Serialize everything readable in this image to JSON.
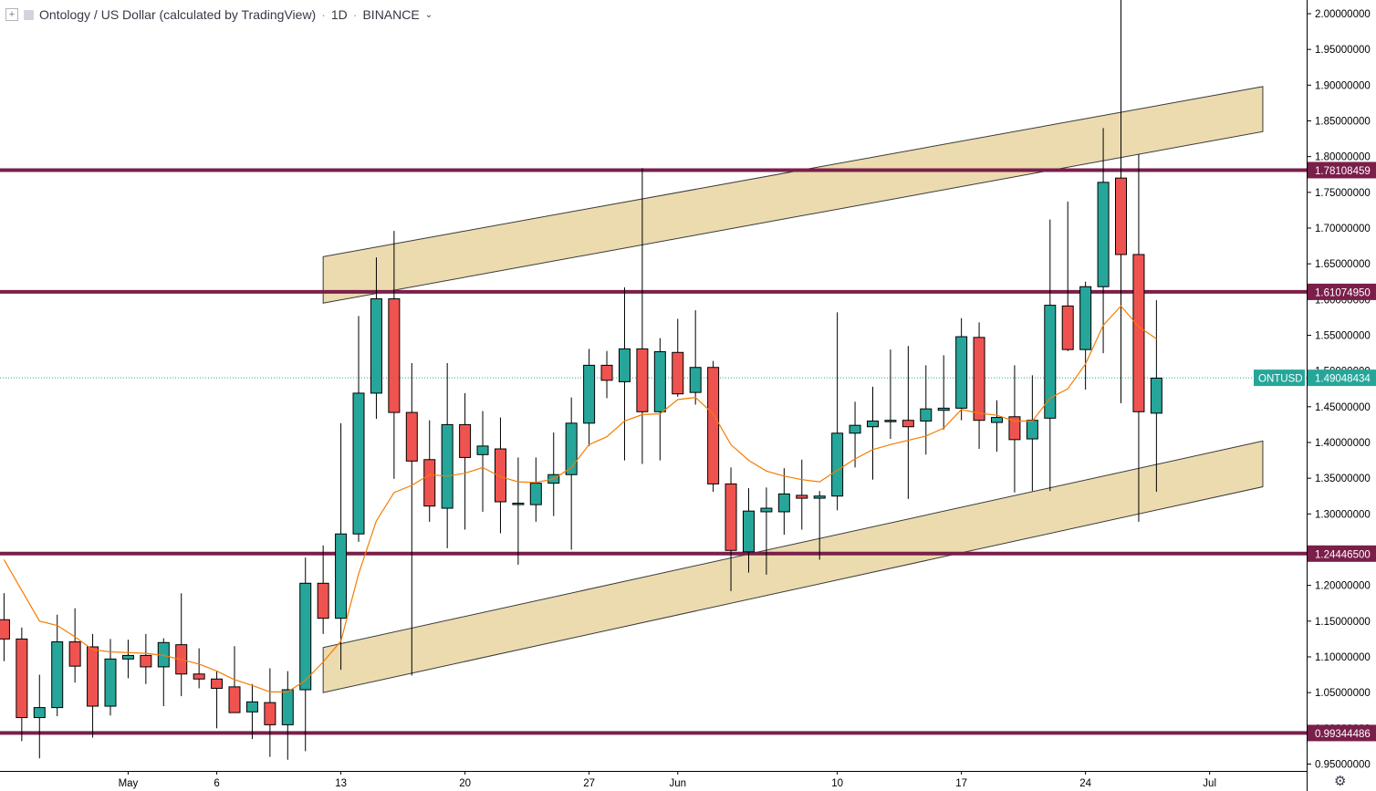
{
  "header": {
    "symbol_title": "Ontology / US Dollar (calculated by TradingView)",
    "interval": "1D",
    "exchange": "BINANCE",
    "add_icon": "plus-square-icon",
    "chevron_icon": "chevron-down-icon"
  },
  "colors": {
    "up": "#26a69a",
    "down": "#ef5350",
    "candle_border": "#000000",
    "ma_line": "#f57c00",
    "level_line": "#7a1f4a",
    "channel_fill": "#e8d5a1",
    "last_price_bg": "#26a69a"
  },
  "chart_data": {
    "type": "candlestick",
    "symbol": "ONTUSD",
    "ylim": [
      0.93,
      2.02
    ],
    "y_ticks": [
      "2.00000000",
      "1.95000000",
      "1.90000000",
      "1.85000000",
      "1.80000000",
      "1.75000000",
      "1.70000000",
      "1.65000000",
      "1.60000000",
      "1.55000000",
      "1.50000000",
      "1.45000000",
      "1.40000000",
      "1.35000000",
      "1.30000000",
      "1.25000000",
      "1.20000000",
      "1.15000000",
      "1.10000000",
      "1.05000000",
      "1.00000000",
      "0.95000000"
    ],
    "x_ticks": [
      {
        "label": "May",
        "day": 1
      },
      {
        "label": "6",
        "day": 6
      },
      {
        "label": "13",
        "day": 13
      },
      {
        "label": "20",
        "day": 20
      },
      {
        "label": "27",
        "day": 27
      },
      {
        "label": "Jun",
        "day": 32
      },
      {
        "label": "10",
        "day": 41
      },
      {
        "label": "17",
        "day": 48
      },
      {
        "label": "24",
        "day": 55
      },
      {
        "label": "Jul",
        "day": 62
      }
    ],
    "candles": [
      {
        "day": -6,
        "o": 1.152,
        "h": 1.189,
        "l": 1.094,
        "c": 1.125
      },
      {
        "day": -5,
        "o": 1.125,
        "h": 1.141,
        "l": 0.982,
        "c": 1.015
      },
      {
        "day": -4,
        "o": 1.015,
        "h": 1.075,
        "l": 0.958,
        "c": 1.029
      },
      {
        "day": -3,
        "o": 1.029,
        "h": 1.159,
        "l": 1.017,
        "c": 1.121
      },
      {
        "day": -2,
        "o": 1.121,
        "h": 1.168,
        "l": 1.064,
        "c": 1.087
      },
      {
        "day": -1,
        "o": 1.114,
        "h": 1.132,
        "l": 0.987,
        "c": 1.031
      },
      {
        "day": 0,
        "o": 1.031,
        "h": 1.125,
        "l": 1.018,
        "c": 1.097
      },
      {
        "day": 1,
        "o": 1.097,
        "h": 1.124,
        "l": 1.07,
        "c": 1.102
      },
      {
        "day": 2,
        "o": 1.102,
        "h": 1.132,
        "l": 1.062,
        "c": 1.086
      },
      {
        "day": 3,
        "o": 1.086,
        "h": 1.126,
        "l": 1.031,
        "c": 1.12
      },
      {
        "day": 4,
        "o": 1.117,
        "h": 1.189,
        "l": 1.045,
        "c": 1.076
      },
      {
        "day": 5,
        "o": 1.076,
        "h": 1.112,
        "l": 1.056,
        "c": 1.069
      },
      {
        "day": 6,
        "o": 1.069,
        "h": 1.08,
        "l": 1.0,
        "c": 1.056
      },
      {
        "day": 7,
        "o": 1.058,
        "h": 1.115,
        "l": 1.023,
        "c": 1.022
      },
      {
        "day": 8,
        "o": 1.023,
        "h": 1.062,
        "l": 0.985,
        "c": 1.037
      },
      {
        "day": 9,
        "o": 1.036,
        "h": 1.084,
        "l": 0.96,
        "c": 1.005
      },
      {
        "day": 10,
        "o": 1.005,
        "h": 1.08,
        "l": 0.956,
        "c": 1.054
      },
      {
        "day": 11,
        "o": 1.054,
        "h": 1.239,
        "l": 0.968,
        "c": 1.203
      },
      {
        "day": 12,
        "o": 1.203,
        "h": 1.256,
        "l": 1.132,
        "c": 1.154
      },
      {
        "day": 13,
        "o": 1.154,
        "h": 1.427,
        "l": 1.082,
        "c": 1.272
      },
      {
        "day": 14,
        "o": 1.272,
        "h": 1.577,
        "l": 1.261,
        "c": 1.469
      },
      {
        "day": 15,
        "o": 1.469,
        "h": 1.659,
        "l": 1.433,
        "c": 1.601
      },
      {
        "day": 16,
        "o": 1.601,
        "h": 1.696,
        "l": 1.349,
        "c": 1.442
      },
      {
        "day": 17,
        "o": 1.442,
        "h": 1.511,
        "l": 1.074,
        "c": 1.374
      },
      {
        "day": 18,
        "o": 1.376,
        "h": 1.431,
        "l": 1.289,
        "c": 1.311
      },
      {
        "day": 19,
        "o": 1.308,
        "h": 1.511,
        "l": 1.252,
        "c": 1.425
      },
      {
        "day": 20,
        "o": 1.425,
        "h": 1.469,
        "l": 1.278,
        "c": 1.379
      },
      {
        "day": 21,
        "o": 1.383,
        "h": 1.444,
        "l": 1.303,
        "c": 1.395
      },
      {
        "day": 22,
        "o": 1.391,
        "h": 1.435,
        "l": 1.273,
        "c": 1.317
      },
      {
        "day": 23,
        "o": 1.315,
        "h": 1.379,
        "l": 1.229,
        "c": 1.315
      },
      {
        "day": 24,
        "o": 1.313,
        "h": 1.379,
        "l": 1.289,
        "c": 1.343
      },
      {
        "day": 25,
        "o": 1.343,
        "h": 1.414,
        "l": 1.297,
        "c": 1.355
      },
      {
        "day": 26,
        "o": 1.355,
        "h": 1.463,
        "l": 1.25,
        "c": 1.427
      },
      {
        "day": 27,
        "o": 1.427,
        "h": 1.531,
        "l": 1.395,
        "c": 1.508
      },
      {
        "day": 28,
        "o": 1.508,
        "h": 1.528,
        "l": 1.462,
        "c": 1.487
      },
      {
        "day": 29,
        "o": 1.485,
        "h": 1.617,
        "l": 1.375,
        "c": 1.531
      },
      {
        "day": 30,
        "o": 1.531,
        "h": 1.784,
        "l": 1.37,
        "c": 1.443
      },
      {
        "day": 31,
        "o": 1.443,
        "h": 1.546,
        "l": 1.375,
        "c": 1.527
      },
      {
        "day": 32,
        "o": 1.526,
        "h": 1.573,
        "l": 1.464,
        "c": 1.468
      },
      {
        "day": 33,
        "o": 1.47,
        "h": 1.585,
        "l": 1.453,
        "c": 1.505
      },
      {
        "day": 34,
        "o": 1.505,
        "h": 1.514,
        "l": 1.331,
        "c": 1.342
      },
      {
        "day": 35,
        "o": 1.342,
        "h": 1.365,
        "l": 1.192,
        "c": 1.249
      },
      {
        "day": 36,
        "o": 1.247,
        "h": 1.336,
        "l": 1.218,
        "c": 1.304
      },
      {
        "day": 37,
        "o": 1.303,
        "h": 1.337,
        "l": 1.215,
        "c": 1.308
      },
      {
        "day": 38,
        "o": 1.303,
        "h": 1.364,
        "l": 1.271,
        "c": 1.328
      },
      {
        "day": 39,
        "o": 1.326,
        "h": 1.376,
        "l": 1.278,
        "c": 1.322
      },
      {
        "day": 40,
        "o": 1.322,
        "h": 1.332,
        "l": 1.236,
        "c": 1.325
      },
      {
        "day": 41,
        "o": 1.325,
        "h": 1.582,
        "l": 1.305,
        "c": 1.413
      },
      {
        "day": 42,
        "o": 1.413,
        "h": 1.457,
        "l": 1.365,
        "c": 1.424
      },
      {
        "day": 43,
        "o": 1.422,
        "h": 1.478,
        "l": 1.348,
        "c": 1.43
      },
      {
        "day": 44,
        "o": 1.43,
        "h": 1.53,
        "l": 1.405,
        "c": 1.431
      },
      {
        "day": 45,
        "o": 1.431,
        "h": 1.535,
        "l": 1.321,
        "c": 1.422
      },
      {
        "day": 46,
        "o": 1.43,
        "h": 1.508,
        "l": 1.383,
        "c": 1.447
      },
      {
        "day": 47,
        "o": 1.445,
        "h": 1.522,
        "l": 1.418,
        "c": 1.448
      },
      {
        "day": 48,
        "o": 1.448,
        "h": 1.574,
        "l": 1.431,
        "c": 1.548
      },
      {
        "day": 49,
        "o": 1.547,
        "h": 1.568,
        "l": 1.391,
        "c": 1.431
      },
      {
        "day": 50,
        "o": 1.428,
        "h": 1.459,
        "l": 1.387,
        "c": 1.435
      },
      {
        "day": 51,
        "o": 1.436,
        "h": 1.508,
        "l": 1.33,
        "c": 1.404
      },
      {
        "day": 52,
        "o": 1.405,
        "h": 1.494,
        "l": 1.332,
        "c": 1.431
      },
      {
        "day": 53,
        "o": 1.434,
        "h": 1.712,
        "l": 1.332,
        "c": 1.592
      },
      {
        "day": 54,
        "o": 1.591,
        "h": 1.737,
        "l": 1.528,
        "c": 1.53
      },
      {
        "day": 55,
        "o": 1.53,
        "h": 1.625,
        "l": 1.474,
        "c": 1.618
      },
      {
        "day": 56,
        "o": 1.618,
        "h": 1.84,
        "l": 1.525,
        "c": 1.764
      },
      {
        "day": 57,
        "o": 1.77,
        "h": 2.02,
        "l": 1.455,
        "c": 1.663
      },
      {
        "day": 58,
        "o": 1.663,
        "h": 1.803,
        "l": 1.289,
        "c": 1.443
      },
      {
        "day": 59,
        "o": 1.441,
        "h": 1.599,
        "l": 1.331,
        "c": 1.49
      }
    ],
    "moving_average": [
      {
        "day": -6,
        "v": 1.236
      },
      {
        "day": -5,
        "v": 1.193
      },
      {
        "day": -4,
        "v": 1.15
      },
      {
        "day": -3,
        "v": 1.144
      },
      {
        "day": -2,
        "v": 1.128
      },
      {
        "day": -1,
        "v": 1.11
      },
      {
        "day": 0,
        "v": 1.107
      },
      {
        "day": 1,
        "v": 1.106
      },
      {
        "day": 2,
        "v": 1.105
      },
      {
        "day": 3,
        "v": 1.102
      },
      {
        "day": 4,
        "v": 1.096
      },
      {
        "day": 5,
        "v": 1.09
      },
      {
        "day": 6,
        "v": 1.08
      },
      {
        "day": 7,
        "v": 1.068
      },
      {
        "day": 8,
        "v": 1.06
      },
      {
        "day": 9,
        "v": 1.051
      },
      {
        "day": 10,
        "v": 1.051
      },
      {
        "day": 11,
        "v": 1.067
      },
      {
        "day": 12,
        "v": 1.093
      },
      {
        "day": 13,
        "v": 1.122
      },
      {
        "day": 14,
        "v": 1.216
      },
      {
        "day": 15,
        "v": 1.29
      },
      {
        "day": 16,
        "v": 1.33
      },
      {
        "day": 17,
        "v": 1.34
      },
      {
        "day": 18,
        "v": 1.355
      },
      {
        "day": 19,
        "v": 1.353
      },
      {
        "day": 20,
        "v": 1.357
      },
      {
        "day": 21,
        "v": 1.365
      },
      {
        "day": 22,
        "v": 1.352
      },
      {
        "day": 23,
        "v": 1.345
      },
      {
        "day": 24,
        "v": 1.344
      },
      {
        "day": 25,
        "v": 1.349
      },
      {
        "day": 26,
        "v": 1.365
      },
      {
        "day": 27,
        "v": 1.397
      },
      {
        "day": 28,
        "v": 1.408
      },
      {
        "day": 29,
        "v": 1.43
      },
      {
        "day": 30,
        "v": 1.439
      },
      {
        "day": 31,
        "v": 1.44
      },
      {
        "day": 32,
        "v": 1.46
      },
      {
        "day": 33,
        "v": 1.463
      },
      {
        "day": 34,
        "v": 1.44
      },
      {
        "day": 35,
        "v": 1.397
      },
      {
        "day": 36,
        "v": 1.375
      },
      {
        "day": 37,
        "v": 1.36
      },
      {
        "day": 38,
        "v": 1.353
      },
      {
        "day": 39,
        "v": 1.348
      },
      {
        "day": 40,
        "v": 1.345
      },
      {
        "day": 41,
        "v": 1.361
      },
      {
        "day": 42,
        "v": 1.377
      },
      {
        "day": 43,
        "v": 1.39
      },
      {
        "day": 44,
        "v": 1.397
      },
      {
        "day": 45,
        "v": 1.403
      },
      {
        "day": 46,
        "v": 1.409
      },
      {
        "day": 47,
        "v": 1.42
      },
      {
        "day": 48,
        "v": 1.446
      },
      {
        "day": 49,
        "v": 1.441
      },
      {
        "day": 50,
        "v": 1.438
      },
      {
        "day": 51,
        "v": 1.43
      },
      {
        "day": 52,
        "v": 1.43
      },
      {
        "day": 53,
        "v": 1.462
      },
      {
        "day": 54,
        "v": 1.475
      },
      {
        "day": 55,
        "v": 1.51
      },
      {
        "day": 56,
        "v": 1.564
      },
      {
        "day": 57,
        "v": 1.591
      },
      {
        "day": 58,
        "v": 1.562
      },
      {
        "day": 59,
        "v": 1.545
      }
    ],
    "horizontal_levels": [
      {
        "value": 1.78108459,
        "label": "1.78108459"
      },
      {
        "value": 1.6107495,
        "label": "1.61074950"
      },
      {
        "value": 1.244465,
        "label": "1.24446500"
      },
      {
        "value": 0.99344486,
        "label": "0.99344486"
      }
    ],
    "channels": [
      {
        "name": "upper",
        "day_start": 12,
        "day_end": 65,
        "top_start": 1.66,
        "top_end": 1.898,
        "bottom_start": 1.595,
        "bottom_end": 1.835
      },
      {
        "name": "lower",
        "day_start": 12,
        "day_end": 65,
        "top_start": 1.113,
        "top_end": 1.402,
        "bottom_start": 1.05,
        "bottom_end": 1.338
      }
    ],
    "last_price": {
      "symbol": "ONTUSD",
      "value": 1.49048434,
      "label": "1.49048434"
    }
  },
  "footer": {
    "settings_icon": "gear-icon"
  }
}
